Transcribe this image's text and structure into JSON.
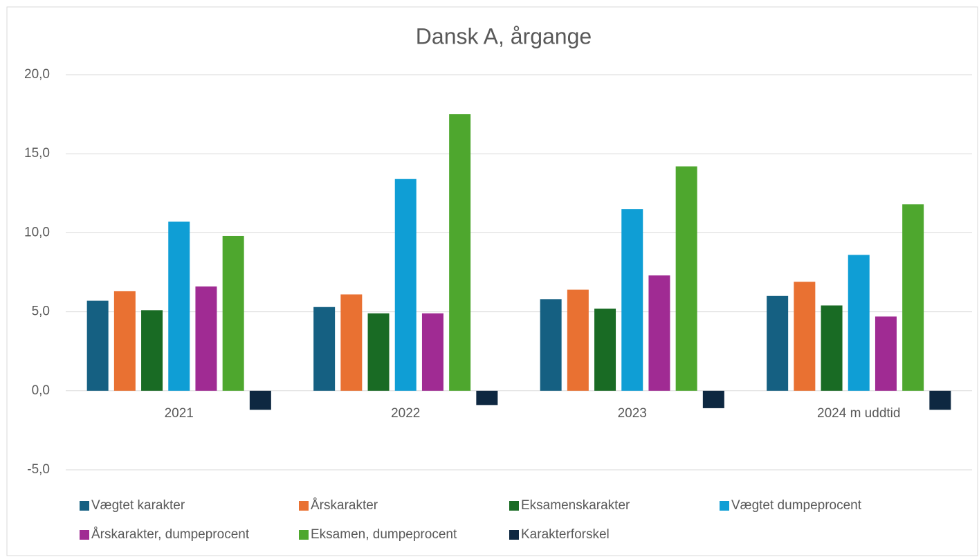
{
  "chart_data": {
    "type": "bar",
    "title": "Dansk A, årgange",
    "categories": [
      "2021",
      "2022",
      "2023",
      "2024 m uddtid"
    ],
    "series": [
      {
        "name": "Vægtet karakter",
        "color": "#156082",
        "values": [
          5.7,
          5.3,
          5.8,
          6.0
        ]
      },
      {
        "name": "Årskarakter",
        "color": "#e97132",
        "values": [
          6.3,
          6.1,
          6.4,
          6.9
        ]
      },
      {
        "name": "Eksamenskarakter",
        "color": "#196b24",
        "values": [
          5.1,
          4.9,
          5.2,
          5.4
        ]
      },
      {
        "name": "Vægtet dumpeprocent",
        "color": "#0f9ed5",
        "values": [
          10.7,
          13.4,
          11.5,
          8.6
        ]
      },
      {
        "name": "Årskarakter, dumpeprocent",
        "color": "#a02b93",
        "values": [
          6.6,
          4.9,
          7.3,
          4.7
        ]
      },
      {
        "name": "Eksamen, dumpeprocent",
        "color": "#4ea72e",
        "values": [
          9.8,
          17.5,
          14.2,
          11.8
        ]
      },
      {
        "name": "Karakterforskel",
        "color": "#0e2841",
        "values": [
          -1.2,
          -0.9,
          -1.1,
          -1.2
        ]
      }
    ],
    "ylim": [
      -5,
      20
    ],
    "yticks": [
      {
        "value": -5,
        "label": "-5,0"
      },
      {
        "value": 0,
        "label": "0,0"
      },
      {
        "value": 5,
        "label": "5,0"
      },
      {
        "value": 10,
        "label": "10,0"
      },
      {
        "value": 15,
        "label": "15,0"
      },
      {
        "value": 20,
        "label": "20,0"
      }
    ],
    "grid": true,
    "legend": "bottom"
  }
}
